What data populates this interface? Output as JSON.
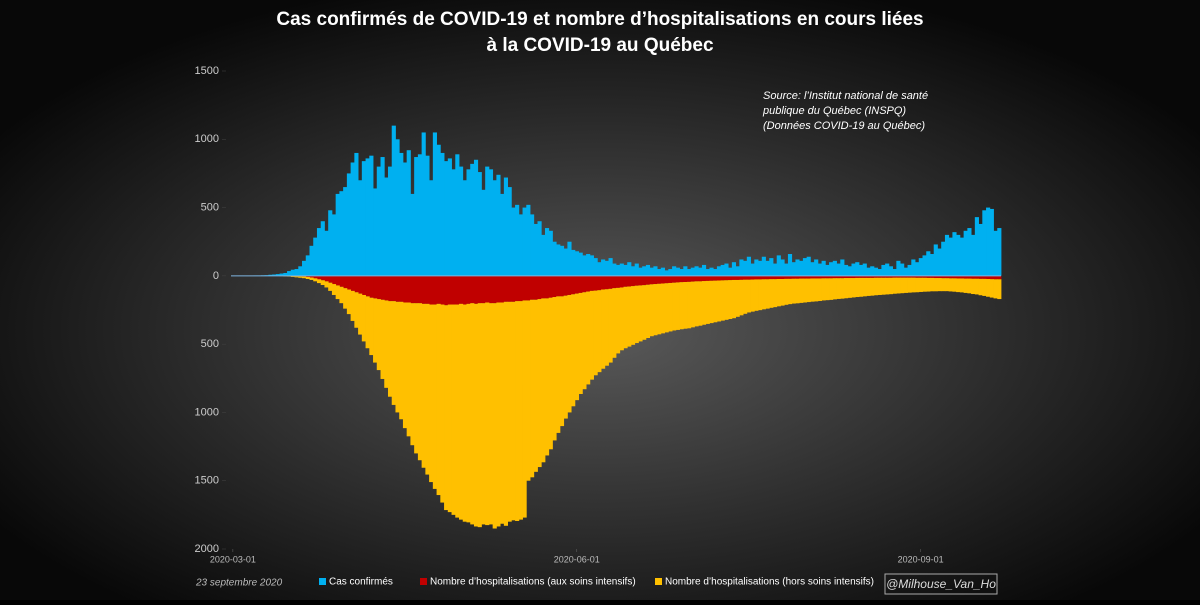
{
  "chart_data": {
    "type": "bar",
    "title": [
      "Cas confirmés de COVID-19 et nombre d’hospitalisations en cours liées",
      "à la COVID-19 au Québec"
    ],
    "source": [
      "Source: l’Institut national de santé",
      "publique du Québec (INSPQ)",
      "(Données COVID-19 au Québec)"
    ],
    "date_note": "23 septembre 2020",
    "credit": "@Milhouse_Van_Ho",
    "xlim": [
      "2020-03-01",
      "2020-09-22"
    ],
    "xticks": [
      "2020-03-01",
      "2020-06-01",
      "2020-09-01"
    ],
    "ylim": [
      -2000,
      1500
    ],
    "yticks": [
      1500,
      1000,
      500,
      0,
      {
        "value": -500,
        "label": "500"
      },
      {
        "value": -1000,
        "label": "1000"
      },
      {
        "value": -1500,
        "label": "1500"
      },
      {
        "value": -2000,
        "label": "2000"
      }
    ],
    "x": [
      "2020-03-01",
      "2020-03-02",
      "2020-03-03",
      "2020-03-04",
      "2020-03-05",
      "2020-03-06",
      "2020-03-07",
      "2020-03-08",
      "2020-03-09",
      "2020-03-10",
      "2020-03-11",
      "2020-03-12",
      "2020-03-13",
      "2020-03-14",
      "2020-03-15",
      "2020-03-16",
      "2020-03-17",
      "2020-03-18",
      "2020-03-19",
      "2020-03-20",
      "2020-03-21",
      "2020-03-22",
      "2020-03-23",
      "2020-03-24",
      "2020-03-25",
      "2020-03-26",
      "2020-03-27",
      "2020-03-28",
      "2020-03-29",
      "2020-03-30",
      "2020-03-31",
      "2020-04-01",
      "2020-04-02",
      "2020-04-03",
      "2020-04-04",
      "2020-04-05",
      "2020-04-06",
      "2020-04-07",
      "2020-04-08",
      "2020-04-09",
      "2020-04-10",
      "2020-04-11",
      "2020-04-12",
      "2020-04-13",
      "2020-04-14",
      "2020-04-15",
      "2020-04-16",
      "2020-04-17",
      "2020-04-18",
      "2020-04-19",
      "2020-04-20",
      "2020-04-21",
      "2020-04-22",
      "2020-04-23",
      "2020-04-24",
      "2020-04-25",
      "2020-04-26",
      "2020-04-27",
      "2020-04-28",
      "2020-04-29",
      "2020-04-30",
      "2020-05-01",
      "2020-05-02",
      "2020-05-03",
      "2020-05-04",
      "2020-05-05",
      "2020-05-06",
      "2020-05-07",
      "2020-05-08",
      "2020-05-09",
      "2020-05-10",
      "2020-05-11",
      "2020-05-12",
      "2020-05-13",
      "2020-05-14",
      "2020-05-15",
      "2020-05-16",
      "2020-05-17",
      "2020-05-18",
      "2020-05-19",
      "2020-05-20",
      "2020-05-21",
      "2020-05-22",
      "2020-05-23",
      "2020-05-24",
      "2020-05-25",
      "2020-05-26",
      "2020-05-27",
      "2020-05-28",
      "2020-05-29",
      "2020-05-30",
      "2020-05-31",
      "2020-06-01",
      "2020-06-02",
      "2020-06-03",
      "2020-06-04",
      "2020-06-05",
      "2020-06-06",
      "2020-06-07",
      "2020-06-08",
      "2020-06-09",
      "2020-06-10",
      "2020-06-11",
      "2020-06-12",
      "2020-06-13",
      "2020-06-14",
      "2020-06-15",
      "2020-06-16",
      "2020-06-17",
      "2020-06-18",
      "2020-06-19",
      "2020-06-20",
      "2020-06-21",
      "2020-06-22",
      "2020-06-23",
      "2020-06-24",
      "2020-06-25",
      "2020-06-26",
      "2020-06-27",
      "2020-06-28",
      "2020-06-29",
      "2020-06-30",
      "2020-07-01",
      "2020-07-02",
      "2020-07-03",
      "2020-07-04",
      "2020-07-05",
      "2020-07-06",
      "2020-07-07",
      "2020-07-08",
      "2020-07-09",
      "2020-07-10",
      "2020-07-11",
      "2020-07-12",
      "2020-07-13",
      "2020-07-14",
      "2020-07-15",
      "2020-07-16",
      "2020-07-17",
      "2020-07-18",
      "2020-07-19",
      "2020-07-20",
      "2020-07-21",
      "2020-07-22",
      "2020-07-23",
      "2020-07-24",
      "2020-07-25",
      "2020-07-26",
      "2020-07-27",
      "2020-07-28",
      "2020-07-29",
      "2020-07-30",
      "2020-07-31",
      "2020-08-01",
      "2020-08-02",
      "2020-08-03",
      "2020-08-04",
      "2020-08-05",
      "2020-08-06",
      "2020-08-07",
      "2020-08-08",
      "2020-08-09",
      "2020-08-10",
      "2020-08-11",
      "2020-08-12",
      "2020-08-13",
      "2020-08-14",
      "2020-08-15",
      "2020-08-16",
      "2020-08-17",
      "2020-08-18",
      "2020-08-19",
      "2020-08-20",
      "2020-08-21",
      "2020-08-22",
      "2020-08-23",
      "2020-08-24",
      "2020-08-25",
      "2020-08-26",
      "2020-08-27",
      "2020-08-28",
      "2020-08-29",
      "2020-08-30",
      "2020-08-31",
      "2020-09-01",
      "2020-09-02",
      "2020-09-03",
      "2020-09-04",
      "2020-09-05",
      "2020-09-06",
      "2020-09-07",
      "2020-09-08",
      "2020-09-09",
      "2020-09-10",
      "2020-09-11",
      "2020-09-12",
      "2020-09-13",
      "2020-09-14",
      "2020-09-15",
      "2020-09-16",
      "2020-09-17",
      "2020-09-18",
      "2020-09-19",
      "2020-09-20",
      "2020-09-21",
      "2020-09-22"
    ],
    "series": [
      {
        "name": "Cas confirmés",
        "color": "#00b0f0",
        "values": [
          0,
          0,
          0,
          1,
          1,
          2,
          3,
          3,
          4,
          5,
          8,
          10,
          13,
          17,
          21,
          35,
          45,
          50,
          70,
          110,
          150,
          220,
          280,
          350,
          400,
          330,
          480,
          450,
          600,
          620,
          650,
          750,
          830,
          900,
          700,
          840,
          860,
          880,
          640,
          800,
          870,
          720,
          800,
          1100,
          1000,
          900,
          830,
          920,
          600,
          870,
          890,
          1050,
          880,
          700,
          1050,
          960,
          900,
          840,
          860,
          780,
          890,
          800,
          700,
          780,
          820,
          850,
          760,
          630,
          800,
          780,
          700,
          740,
          600,
          720,
          650,
          500,
          520,
          450,
          500,
          520,
          450,
          380,
          400,
          300,
          350,
          330,
          250,
          230,
          220,
          200,
          250,
          190,
          180,
          170,
          150,
          160,
          150,
          130,
          100,
          120,
          110,
          130,
          90,
          80,
          90,
          80,
          100,
          70,
          90,
          60,
          70,
          80,
          60,
          70,
          50,
          60,
          40,
          50,
          70,
          60,
          50,
          70,
          50,
          60,
          70,
          60,
          80,
          50,
          60,
          50,
          70,
          80,
          90,
          60,
          100,
          70,
          120,
          110,
          140,
          90,
          120,
          110,
          140,
          110,
          130,
          90,
          150,
          120,
          90,
          160,
          100,
          120,
          110,
          130,
          140,
          100,
          120,
          90,
          110,
          80,
          100,
          110,
          90,
          120,
          80,
          70,
          90,
          100,
          80,
          90,
          60,
          70,
          60,
          50,
          80,
          90,
          70,
          50,
          110,
          90,
          60,
          80,
          120,
          100,
          130,
          150,
          180,
          160,
          230,
          200,
          250,
          300,
          280,
          320,
          300,
          280,
          330,
          350,
          300,
          430,
          380,
          480,
          500,
          490,
          330,
          350
        ]
      },
      {
        "name": "Nombre d’hospitalisations (aux soins intensifs)",
        "color": "#c00000",
        "values": [
          0,
          0,
          0,
          0,
          0,
          0,
          0,
          0,
          0,
          0,
          0,
          0,
          0,
          0,
          -1,
          -1,
          -2,
          -3,
          -4,
          -5,
          -8,
          -12,
          -18,
          -25,
          -32,
          -40,
          -50,
          -60,
          -70,
          -80,
          -90,
          -100,
          -110,
          -120,
          -130,
          -140,
          -150,
          -160,
          -165,
          -170,
          -175,
          -180,
          -185,
          -185,
          -190,
          -190,
          -195,
          -195,
          -200,
          -200,
          -200,
          -205,
          -205,
          -210,
          -210,
          -205,
          -210,
          -215,
          -210,
          -210,
          -210,
          -205,
          -210,
          -205,
          -200,
          -205,
          -200,
          -200,
          -195,
          -200,
          -200,
          -195,
          -195,
          -190,
          -190,
          -190,
          -185,
          -185,
          -180,
          -180,
          -175,
          -175,
          -170,
          -165,
          -165,
          -160,
          -155,
          -150,
          -150,
          -145,
          -140,
          -135,
          -130,
          -125,
          -120,
          -115,
          -110,
          -108,
          -105,
          -100,
          -98,
          -95,
          -90,
          -88,
          -85,
          -80,
          -78,
          -75,
          -72,
          -70,
          -68,
          -65,
          -62,
          -60,
          -58,
          -56,
          -54,
          -52,
          -50,
          -48,
          -46,
          -45,
          -44,
          -42,
          -40,
          -40,
          -38,
          -37,
          -36,
          -35,
          -34,
          -33,
          -32,
          -31,
          -30,
          -30,
          -29,
          -28,
          -28,
          -27,
          -26,
          -26,
          -25,
          -25,
          -24,
          -24,
          -23,
          -23,
          -22,
          -22,
          -21,
          -21,
          -20,
          -20,
          -20,
          -19,
          -19,
          -19,
          -18,
          -18,
          -18,
          -17,
          -17,
          -17,
          -16,
          -16,
          -16,
          -15,
          -15,
          -15,
          -15,
          -15,
          -14,
          -14,
          -14,
          -14,
          -14,
          -13,
          -13,
          -13,
          -13,
          -13,
          -13,
          -14,
          -14,
          -14,
          -15,
          -15,
          -16,
          -16,
          -17,
          -17,
          -18,
          -18,
          -19,
          -19,
          -20,
          -20,
          -21,
          -21,
          -22,
          -22,
          -23,
          -24,
          -25,
          -25
        ]
      },
      {
        "name": "Nombre d’hospitalisations (hors soins intensifs)",
        "color": "#ffc000",
        "values": [
          0,
          0,
          0,
          0,
          0,
          0,
          0,
          0,
          0,
          0,
          0,
          0,
          -1,
          -2,
          -3,
          -4,
          -6,
          -8,
          -10,
          -12,
          -15,
          -18,
          -22,
          -28,
          -35,
          -45,
          -60,
          -80,
          -100,
          -120,
          -150,
          -180,
          -220,
          -260,
          -300,
          -340,
          -380,
          -420,
          -470,
          -520,
          -580,
          -640,
          -700,
          -760,
          -810,
          -860,
          -920,
          -980,
          -1040,
          -1100,
          -1150,
          -1200,
          -1250,
          -1300,
          -1350,
          -1400,
          -1450,
          -1500,
          -1520,
          -1540,
          -1560,
          -1580,
          -1590,
          -1600,
          -1620,
          -1630,
          -1640,
          -1620,
          -1630,
          -1620,
          -1650,
          -1640,
          -1620,
          -1640,
          -1610,
          -1600,
          -1610,
          -1600,
          -1590,
          -1320,
          -1300,
          -1260,
          -1230,
          -1200,
          -1150,
          -1110,
          -1050,
          -1000,
          -950,
          -900,
          -860,
          -820,
          -780,
          -740,
          -710,
          -680,
          -650,
          -620,
          -600,
          -580,
          -560,
          -540,
          -510,
          -480,
          -460,
          -450,
          -440,
          -430,
          -420,
          -410,
          -400,
          -390,
          -380,
          -375,
          -370,
          -365,
          -360,
          -355,
          -350,
          -348,
          -345,
          -342,
          -340,
          -335,
          -330,
          -325,
          -320,
          -315,
          -310,
          -305,
          -300,
          -295,
          -290,
          -285,
          -280,
          -270,
          -260,
          -250,
          -240,
          -235,
          -230,
          -225,
          -220,
          -215,
          -210,
          -205,
          -200,
          -195,
          -190,
          -185,
          -182,
          -180,
          -178,
          -175,
          -172,
          -170,
          -168,
          -165,
          -162,
          -160,
          -158,
          -155,
          -152,
          -150,
          -148,
          -145,
          -142,
          -140,
          -138,
          -135,
          -132,
          -130,
          -128,
          -126,
          -124,
          -122,
          -120,
          -118,
          -116,
          -114,
          -112,
          -110,
          -108,
          -106,
          -104,
          -102,
          -100,
          -98,
          -97,
          -96,
          -95,
          -95,
          -96,
          -98,
          -100,
          -102,
          -105,
          -108,
          -112,
          -115,
          -120,
          -125,
          -130,
          -135,
          -140,
          -145
        ]
      }
    ]
  }
}
